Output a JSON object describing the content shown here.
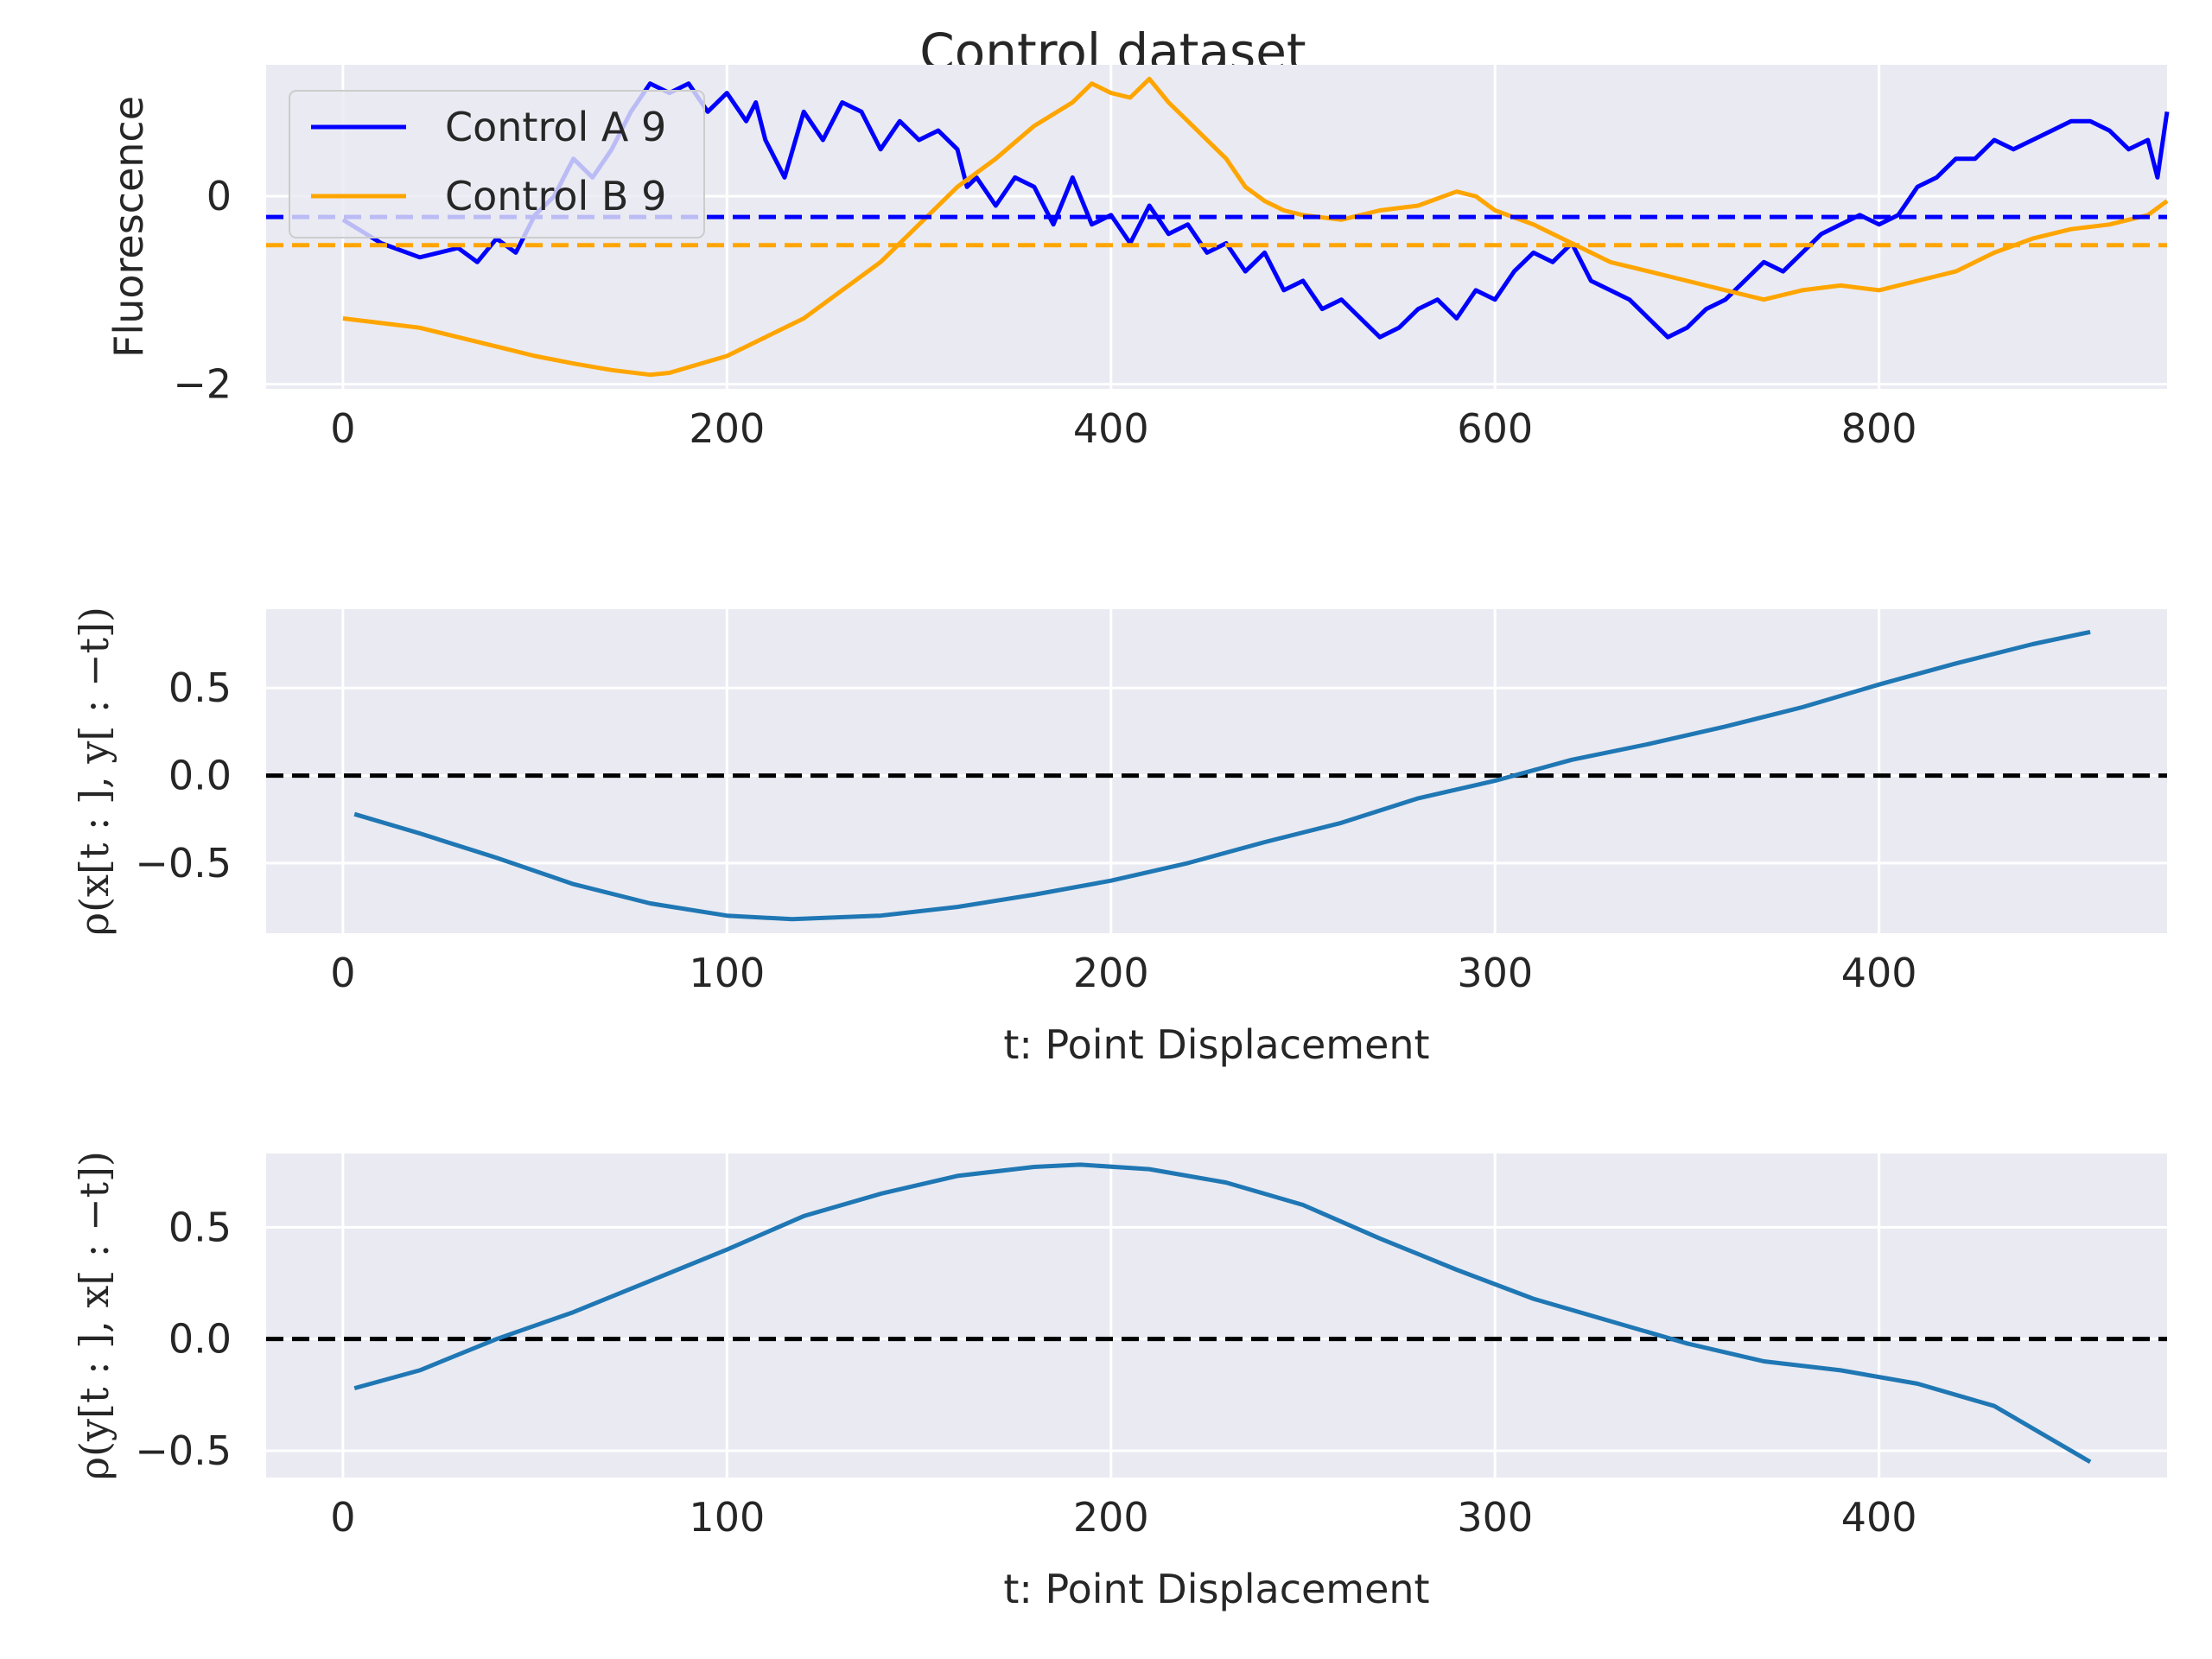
{
  "figure_title": "Control dataset",
  "colors": {
    "background": "#EAEAF2",
    "grid": "#FFFFFF",
    "series_a": "#0000FF",
    "series_b": "#FFA500",
    "correlation": "#1F77B4",
    "zero_line": "#000000"
  },
  "chart_data": [
    {
      "type": "line",
      "ylabel": "Fluorescence",
      "xlabel": "",
      "xlim": [
        -40,
        950
      ],
      "ylim": [
        -2.05,
        1.4
      ],
      "x_ticks": [
        0,
        200,
        400,
        600,
        800
      ],
      "x_tick_labels": [
        "0",
        "200",
        "400",
        "600",
        "800"
      ],
      "y_ticks": [
        -2,
        0
      ],
      "y_tick_labels": [
        "−2",
        "0"
      ],
      "grid": true,
      "legend_position": "upper-left",
      "series": [
        {
          "name": "Control A 9",
          "color": "#0000FF",
          "style": "solid",
          "points": [
            [
              0,
              -0.25
            ],
            [
              20,
              -0.5
            ],
            [
              40,
              -0.65
            ],
            [
              60,
              -0.55
            ],
            [
              70,
              -0.7
            ],
            [
              80,
              -0.45
            ],
            [
              90,
              -0.6
            ],
            [
              100,
              -0.2
            ],
            [
              110,
              0.0
            ],
            [
              120,
              0.4
            ],
            [
              130,
              0.2
            ],
            [
              140,
              0.5
            ],
            [
              150,
              0.9
            ],
            [
              160,
              1.2
            ],
            [
              170,
              1.1
            ],
            [
              180,
              1.2
            ],
            [
              190,
              0.9
            ],
            [
              200,
              1.1
            ],
            [
              210,
              0.8
            ],
            [
              215,
              1.0
            ],
            [
              220,
              0.6
            ],
            [
              230,
              0.2
            ],
            [
              240,
              0.9
            ],
            [
              250,
              0.6
            ],
            [
              260,
              1.0
            ],
            [
              270,
              0.9
            ],
            [
              280,
              0.5
            ],
            [
              290,
              0.8
            ],
            [
              300,
              0.6
            ],
            [
              310,
              0.7
            ],
            [
              320,
              0.5
            ],
            [
              325,
              0.1
            ],
            [
              330,
              0.2
            ],
            [
              340,
              -0.1
            ],
            [
              350,
              0.2
            ],
            [
              360,
              0.1
            ],
            [
              370,
              -0.3
            ],
            [
              380,
              0.2
            ],
            [
              390,
              -0.3
            ],
            [
              400,
              -0.2
            ],
            [
              410,
              -0.5
            ],
            [
              420,
              -0.1
            ],
            [
              430,
              -0.4
            ],
            [
              440,
              -0.3
            ],
            [
              450,
              -0.6
            ],
            [
              460,
              -0.5
            ],
            [
              470,
              -0.8
            ],
            [
              480,
              -0.6
            ],
            [
              490,
              -1.0
            ],
            [
              500,
              -0.9
            ],
            [
              510,
              -1.2
            ],
            [
              520,
              -1.1
            ],
            [
              530,
              -1.3
            ],
            [
              540,
              -1.5
            ],
            [
              550,
              -1.4
            ],
            [
              560,
              -1.2
            ],
            [
              570,
              -1.1
            ],
            [
              580,
              -1.3
            ],
            [
              590,
              -1.0
            ],
            [
              600,
              -1.1
            ],
            [
              610,
              -0.8
            ],
            [
              620,
              -0.6
            ],
            [
              630,
              -0.7
            ],
            [
              640,
              -0.5
            ],
            [
              650,
              -0.9
            ],
            [
              660,
              -1.0
            ],
            [
              670,
              -1.1
            ],
            [
              680,
              -1.3
            ],
            [
              690,
              -1.5
            ],
            [
              700,
              -1.4
            ],
            [
              710,
              -1.2
            ],
            [
              720,
              -1.1
            ],
            [
              730,
              -0.9
            ],
            [
              740,
              -0.7
            ],
            [
              750,
              -0.8
            ],
            [
              760,
              -0.6
            ],
            [
              770,
              -0.4
            ],
            [
              780,
              -0.3
            ],
            [
              790,
              -0.2
            ],
            [
              800,
              -0.3
            ],
            [
              810,
              -0.2
            ],
            [
              820,
              0.1
            ],
            [
              830,
              0.2
            ],
            [
              840,
              0.4
            ],
            [
              850,
              0.4
            ],
            [
              860,
              0.6
            ],
            [
              870,
              0.5
            ],
            [
              880,
              0.6
            ],
            [
              890,
              0.7
            ],
            [
              900,
              0.8
            ],
            [
              910,
              0.8
            ],
            [
              920,
              0.7
            ],
            [
              930,
              0.5
            ],
            [
              940,
              0.6
            ],
            [
              945,
              0.2
            ],
            [
              950,
              0.9
            ]
          ]
        },
        {
          "name": "Control B 9",
          "color": "#FFA500",
          "style": "solid",
          "points": [
            [
              0,
              -1.3
            ],
            [
              20,
              -1.35
            ],
            [
              40,
              -1.4
            ],
            [
              60,
              -1.5
            ],
            [
              80,
              -1.6
            ],
            [
              100,
              -1.7
            ],
            [
              120,
              -1.78
            ],
            [
              140,
              -1.85
            ],
            [
              160,
              -1.9
            ],
            [
              170,
              -1.88
            ],
            [
              180,
              -1.82
            ],
            [
              200,
              -1.7
            ],
            [
              220,
              -1.5
            ],
            [
              240,
              -1.3
            ],
            [
              260,
              -1.0
            ],
            [
              280,
              -0.7
            ],
            [
              300,
              -0.3
            ],
            [
              320,
              0.1
            ],
            [
              340,
              0.4
            ],
            [
              360,
              0.75
            ],
            [
              380,
              1.0
            ],
            [
              390,
              1.2
            ],
            [
              400,
              1.1
            ],
            [
              410,
              1.05
            ],
            [
              420,
              1.25
            ],
            [
              430,
              1.0
            ],
            [
              440,
              0.8
            ],
            [
              450,
              0.6
            ],
            [
              460,
              0.4
            ],
            [
              470,
              0.1
            ],
            [
              480,
              -0.05
            ],
            [
              490,
              -0.15
            ],
            [
              500,
              -0.2
            ],
            [
              520,
              -0.25
            ],
            [
              540,
              -0.15
            ],
            [
              560,
              -0.1
            ],
            [
              580,
              0.05
            ],
            [
              590,
              0.0
            ],
            [
              600,
              -0.15
            ],
            [
              620,
              -0.3
            ],
            [
              640,
              -0.5
            ],
            [
              660,
              -0.7
            ],
            [
              680,
              -0.8
            ],
            [
              700,
              -0.9
            ],
            [
              720,
              -1.0
            ],
            [
              740,
              -1.1
            ],
            [
              760,
              -1.0
            ],
            [
              780,
              -0.95
            ],
            [
              800,
              -1.0
            ],
            [
              820,
              -0.9
            ],
            [
              840,
              -0.8
            ],
            [
              860,
              -0.6
            ],
            [
              880,
              -0.45
            ],
            [
              900,
              -0.35
            ],
            [
              920,
              -0.3
            ],
            [
              940,
              -0.2
            ],
            [
              950,
              -0.05
            ]
          ]
        },
        {
          "name": "",
          "color": "#0000FF",
          "style": "dashed",
          "points": [
            [
              -40,
              -0.22
            ],
            [
              950,
              -0.22
            ]
          ]
        },
        {
          "name": "",
          "color": "#FFA500",
          "style": "dashed",
          "points": [
            [
              -40,
              -0.52
            ],
            [
              950,
              -0.52
            ]
          ]
        }
      ]
    },
    {
      "type": "line",
      "ylabel": "ρ(x[t : ], y[ : −t])",
      "xlabel": "t: Point Displacement",
      "xlim": [
        -20,
        475
      ],
      "ylim": [
        -0.9,
        0.95
      ],
      "x_ticks": [
        0,
        100,
        200,
        300,
        400
      ],
      "x_tick_labels": [
        "0",
        "100",
        "200",
        "300",
        "400"
      ],
      "y_ticks": [
        0.5,
        0.0,
        -0.5
      ],
      "y_tick_labels": [
        "0.5",
        "0.0",
        "−0.5"
      ],
      "grid": true,
      "zero_line": 0,
      "series": [
        {
          "name": "",
          "color": "#1F77B4",
          "style": "solid",
          "points": [
            [
              3,
              -0.22
            ],
            [
              20,
              -0.33
            ],
            [
              40,
              -0.47
            ],
            [
              60,
              -0.62
            ],
            [
              80,
              -0.73
            ],
            [
              100,
              -0.8
            ],
            [
              117,
              -0.82
            ],
            [
              140,
              -0.8
            ],
            [
              160,
              -0.75
            ],
            [
              180,
              -0.68
            ],
            [
              200,
              -0.6
            ],
            [
              220,
              -0.5
            ],
            [
              240,
              -0.38
            ],
            [
              260,
              -0.27
            ],
            [
              280,
              -0.13
            ],
            [
              300,
              -0.03
            ],
            [
              320,
              0.09
            ],
            [
              340,
              0.18
            ],
            [
              360,
              0.28
            ],
            [
              380,
              0.39
            ],
            [
              400,
              0.52
            ],
            [
              420,
              0.64
            ],
            [
              440,
              0.75
            ],
            [
              455,
              0.82
            ]
          ]
        }
      ]
    },
    {
      "type": "line",
      "ylabel": "ρ(y[t : ], x[ : −t])",
      "xlabel": "t: Point Displacement",
      "xlim": [
        -20,
        475
      ],
      "ylim": [
        -0.62,
        0.83
      ],
      "x_ticks": [
        0,
        100,
        200,
        300,
        400
      ],
      "x_tick_labels": [
        "0",
        "100",
        "200",
        "300",
        "400"
      ],
      "y_ticks": [
        0.5,
        0.0,
        -0.5
      ],
      "y_tick_labels": [
        "0.5",
        "0.0",
        "−0.5"
      ],
      "grid": true,
      "zero_line": 0,
      "series": [
        {
          "name": "",
          "color": "#1F77B4",
          "style": "solid",
          "points": [
            [
              3,
              -0.22
            ],
            [
              20,
              -0.14
            ],
            [
              40,
              0.0
            ],
            [
              60,
              0.12
            ],
            [
              80,
              0.26
            ],
            [
              100,
              0.4
            ],
            [
              120,
              0.55
            ],
            [
              140,
              0.65
            ],
            [
              160,
              0.73
            ],
            [
              180,
              0.77
            ],
            [
              192,
              0.78
            ],
            [
              210,
              0.76
            ],
            [
              230,
              0.7
            ],
            [
              250,
              0.6
            ],
            [
              270,
              0.45
            ],
            [
              290,
              0.31
            ],
            [
              310,
              0.18
            ],
            [
              330,
              0.08
            ],
            [
              350,
              -0.02
            ],
            [
              370,
              -0.1
            ],
            [
              390,
              -0.14
            ],
            [
              410,
              -0.2
            ],
            [
              430,
              -0.3
            ],
            [
              455,
              -0.55
            ]
          ]
        }
      ]
    }
  ]
}
